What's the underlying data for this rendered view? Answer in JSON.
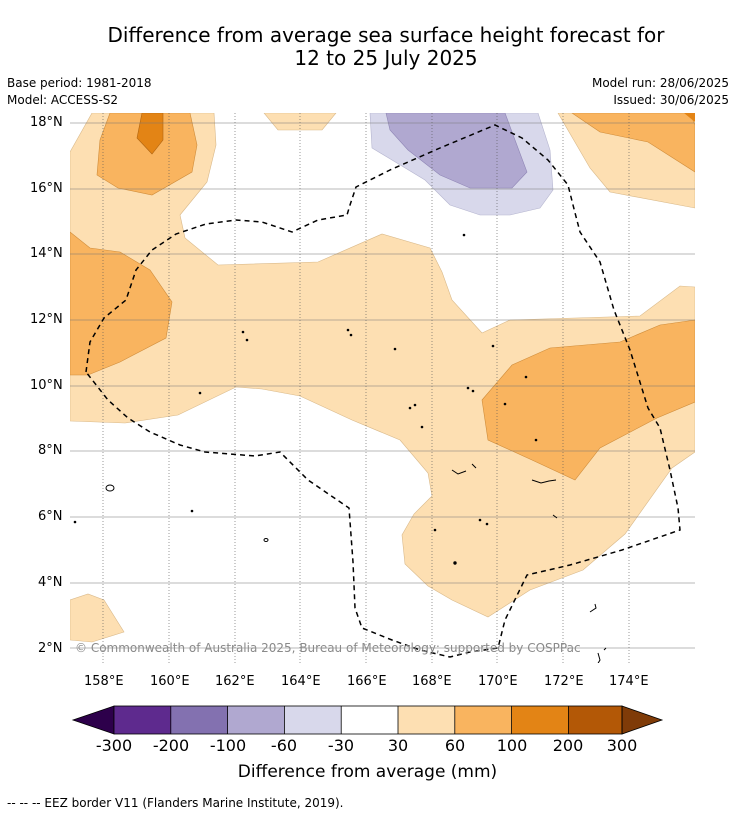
{
  "title": {
    "line1": "Difference from average sea surface height forecast for",
    "line2": "12 to 25 July 2025"
  },
  "meta": {
    "base_period": "Base period: 1981-2018",
    "model": "Model: ACCESS-S2",
    "model_run": "Model run: 28/06/2025",
    "issued": "Issued: 30/06/2025"
  },
  "map": {
    "lon_range": [
      157,
      176
    ],
    "lat_range": [
      1.5,
      18.3
    ],
    "lat_ticks": [
      "18°N",
      "16°N",
      "14°N",
      "12°N",
      "10°N",
      "8°N",
      "6°N",
      "4°N",
      "2°N"
    ],
    "lon_ticks": [
      "158°E",
      "160°E",
      "162°E",
      "164°E",
      "166°E",
      "168°E",
      "170°E",
      "172°E",
      "174°E"
    ],
    "copyright": "© Commonwealth of Australia 2025, Bureau of Meteorology; supported by COSPPac"
  },
  "legend": {
    "title": "Difference from average (mm)",
    "labels": [
      "-300",
      "-200",
      "-100",
      "-60",
      "-30",
      "30",
      "60",
      "100",
      "200",
      "300"
    ],
    "colors": [
      "#2d004b",
      "#5e2a8e",
      "#8371b0",
      "#b0a8d0",
      "#d8d8eb",
      "#ffffff",
      "#fddfb2",
      "#f9b45f",
      "#e38415",
      "#b35806",
      "#7f3b08"
    ]
  },
  "footnote": "-- -- -- EEZ border V11 (Flanders Marine Institute, 2019)."
}
